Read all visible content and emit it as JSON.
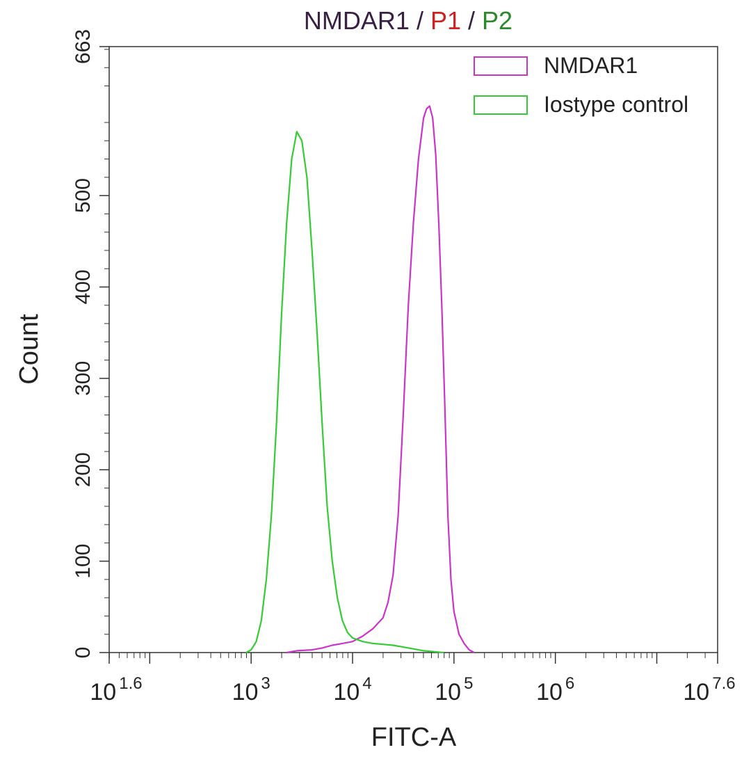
{
  "chart_data": {
    "type": "line",
    "title_parts": [
      {
        "text": "NMDAR1",
        "color": "#3a1f45"
      },
      {
        "text": " / ",
        "color": "#3a1f45"
      },
      {
        "text": "P1",
        "color": "#cc2222"
      },
      {
        "text": " / ",
        "color": "#3a1f45"
      },
      {
        "text": "P2",
        "color": "#2a8a2a"
      }
    ],
    "xlabel": "FITC-A",
    "ylabel": "Count",
    "x_scale": "log10",
    "xlim": [
      1.6,
      7.6
    ],
    "ylim": [
      0,
      663
    ],
    "x_ticks": [
      {
        "exp": 1.6,
        "base": "10",
        "sup": "1.6"
      },
      {
        "exp": 3,
        "base": "10",
        "sup": "3"
      },
      {
        "exp": 4,
        "base": "10",
        "sup": "4"
      },
      {
        "exp": 5,
        "base": "10",
        "sup": "5"
      },
      {
        "exp": 6,
        "base": "10",
        "sup": "6"
      },
      {
        "exp": 7.6,
        "base": "10",
        "sup": "7.6"
      }
    ],
    "y_ticks": [
      0,
      100,
      200,
      300,
      400,
      500,
      663
    ],
    "legend_position": "top-right",
    "series": [
      {
        "name": "NMDAR1",
        "color": "#cc33cc",
        "points": [
          [
            3.35,
            0
          ],
          [
            3.45,
            2
          ],
          [
            3.6,
            3
          ],
          [
            3.7,
            5
          ],
          [
            3.8,
            8
          ],
          [
            3.9,
            10
          ],
          [
            4.0,
            12
          ],
          [
            4.1,
            18
          ],
          [
            4.2,
            26
          ],
          [
            4.3,
            38
          ],
          [
            4.35,
            55
          ],
          [
            4.4,
            85
          ],
          [
            4.45,
            150
          ],
          [
            4.5,
            260
          ],
          [
            4.55,
            380
          ],
          [
            4.6,
            470
          ],
          [
            4.65,
            540
          ],
          [
            4.7,
            585
          ],
          [
            4.73,
            595
          ],
          [
            4.76,
            598
          ],
          [
            4.79,
            585
          ],
          [
            4.82,
            545
          ],
          [
            4.85,
            470
          ],
          [
            4.88,
            380
          ],
          [
            4.91,
            270
          ],
          [
            4.94,
            150
          ],
          [
            4.97,
            80
          ],
          [
            5.0,
            45
          ],
          [
            5.05,
            20
          ],
          [
            5.1,
            10
          ],
          [
            5.15,
            3
          ],
          [
            5.2,
            0
          ]
        ]
      },
      {
        "name": "Iostype control",
        "color": "#33cc33",
        "points": [
          [
            2.95,
            0
          ],
          [
            3.0,
            3
          ],
          [
            3.05,
            12
          ],
          [
            3.1,
            35
          ],
          [
            3.15,
            80
          ],
          [
            3.2,
            150
          ],
          [
            3.25,
            250
          ],
          [
            3.3,
            370
          ],
          [
            3.35,
            470
          ],
          [
            3.4,
            540
          ],
          [
            3.45,
            570
          ],
          [
            3.5,
            560
          ],
          [
            3.55,
            520
          ],
          [
            3.6,
            440
          ],
          [
            3.65,
            350
          ],
          [
            3.7,
            250
          ],
          [
            3.75,
            160
          ],
          [
            3.8,
            100
          ],
          [
            3.85,
            60
          ],
          [
            3.9,
            35
          ],
          [
            3.95,
            22
          ],
          [
            4.0,
            16
          ],
          [
            4.1,
            12
          ],
          [
            4.2,
            10
          ],
          [
            4.3,
            9
          ],
          [
            4.4,
            8
          ],
          [
            4.5,
            6
          ],
          [
            4.6,
            4
          ],
          [
            4.7,
            2
          ],
          [
            4.8,
            1
          ],
          [
            4.9,
            0
          ]
        ]
      }
    ]
  }
}
